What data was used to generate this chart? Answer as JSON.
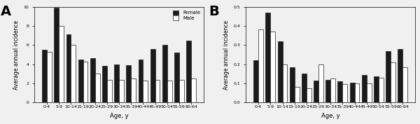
{
  "age_groups": [
    "0-4",
    "5-9",
    "10-14",
    "15-19",
    "20-24",
    "25-29",
    "30-34",
    "35-39",
    "40-44",
    "45-49",
    "50-54",
    "55-59",
    "60-64"
  ],
  "A_female": [
    5.5,
    9.9,
    7.1,
    4.5,
    4.6,
    3.8,
    4.0,
    3.9,
    4.5,
    5.6,
    6.0,
    5.2,
    6.5
  ],
  "A_male": [
    5.3,
    8.0,
    6.0,
    4.3,
    3.0,
    2.4,
    2.4,
    2.5,
    2.3,
    2.4,
    2.3,
    2.4,
    2.5
  ],
  "B_female": [
    0.22,
    0.47,
    0.32,
    0.185,
    0.15,
    0.115,
    0.12,
    0.11,
    0.105,
    0.145,
    0.135,
    0.27,
    0.28
  ],
  "B_male": [
    0.38,
    0.37,
    0.2,
    0.08,
    0.075,
    0.2,
    0.125,
    0.095,
    0.1,
    0.1,
    0.13,
    0.21,
    0.185
  ],
  "A_ylim": [
    0,
    10
  ],
  "A_yticks": [
    0,
    2,
    4,
    6,
    8,
    10
  ],
  "B_ylim": [
    0,
    0.5
  ],
  "B_yticks": [
    0.0,
    0.1,
    0.2,
    0.3,
    0.4,
    0.5
  ],
  "ylabel": "Average annual incidence",
  "xlabel": "Age, y",
  "female_color": "#1a1a1a",
  "male_color": "#ffffff",
  "bar_edge_color": "#1a1a1a",
  "background_color": "#f0f0f0"
}
